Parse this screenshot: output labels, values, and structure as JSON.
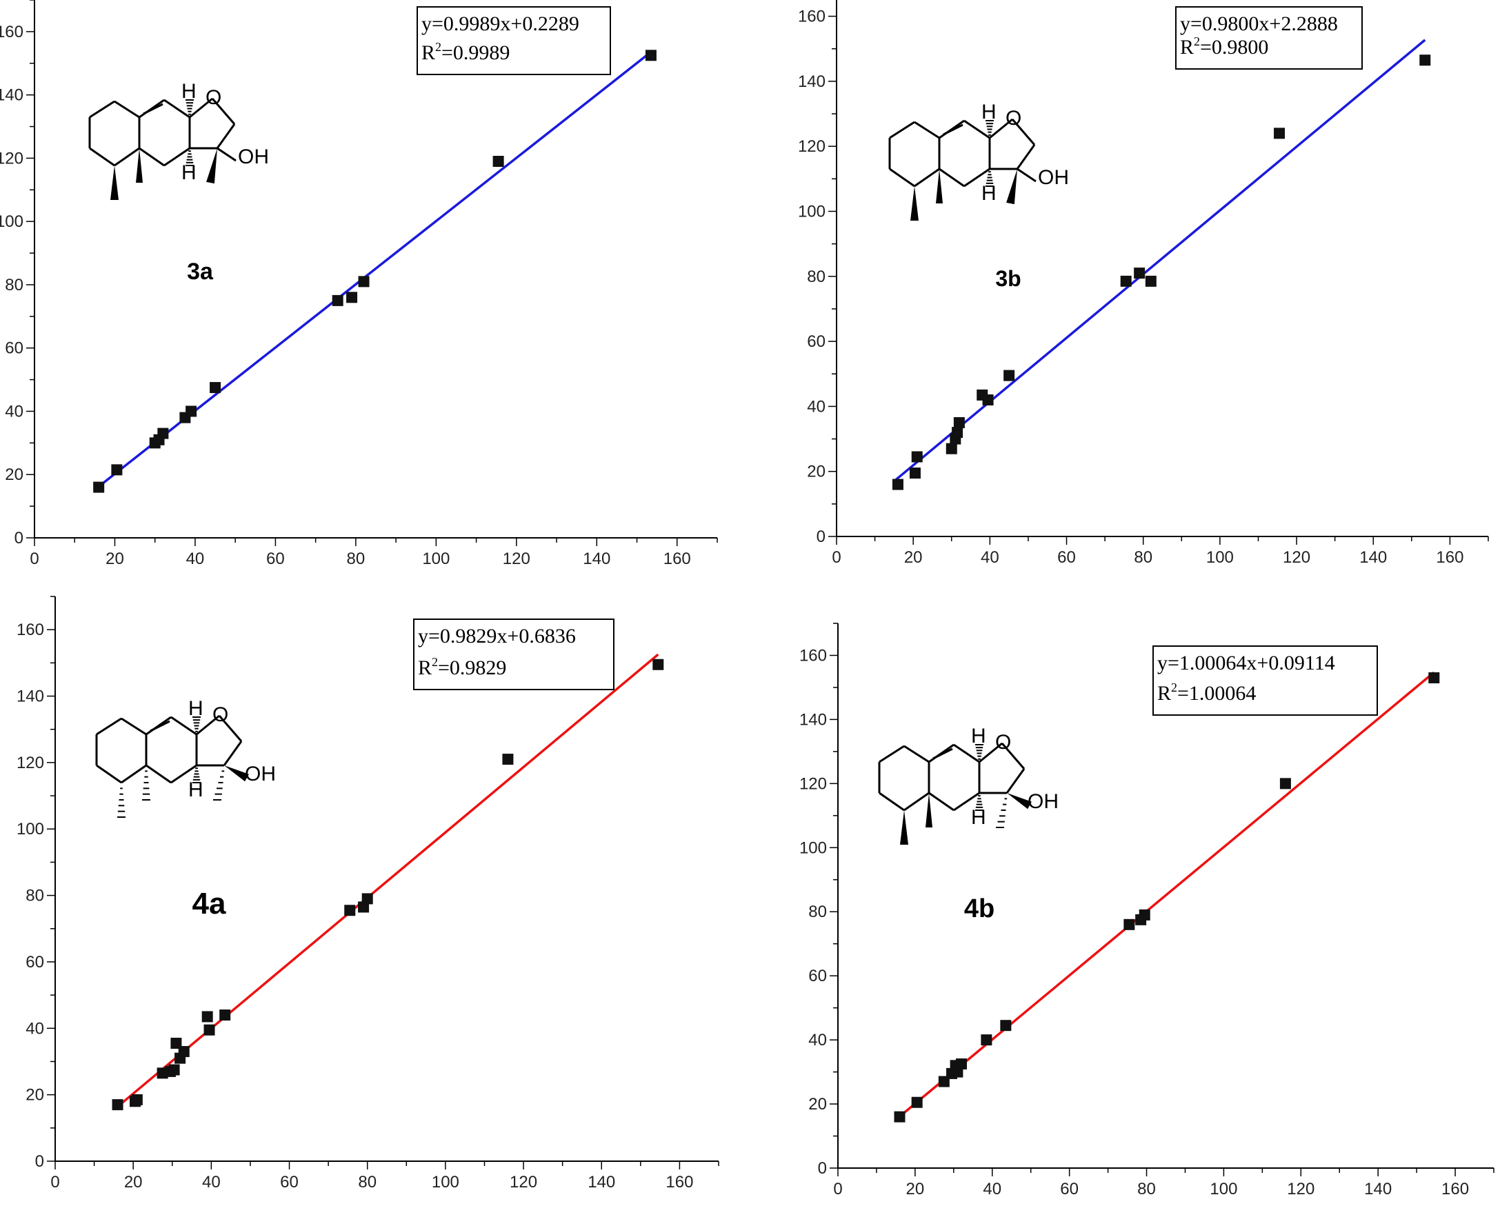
{
  "chart_data": [
    {
      "type": "scatter",
      "label": "3a",
      "equation": "y=0.9989x+0.2289",
      "r2_value": "=0.9989",
      "line_color": "#1a1adc",
      "xlim": [
        0,
        170
      ],
      "ylim": [
        0,
        170
      ],
      "xticks": [
        0,
        20,
        40,
        60,
        80,
        100,
        120,
        140,
        160
      ],
      "yticks": [
        0,
        20,
        40,
        60,
        80,
        100,
        120,
        140,
        160
      ],
      "fit": {
        "slope": 0.9989,
        "intercept": 0.2289,
        "x_range": [
          15.5,
          153.5
        ]
      },
      "points": [
        [
          16,
          16
        ],
        [
          20.5,
          21.5
        ],
        [
          30,
          30
        ],
        [
          31,
          31
        ],
        [
          32,
          33
        ],
        [
          37.5,
          38
        ],
        [
          39,
          40
        ],
        [
          45,
          47.5
        ],
        [
          75.5,
          75
        ],
        [
          79,
          76
        ],
        [
          82,
          81
        ],
        [
          115.5,
          119
        ],
        [
          153.5,
          152.5
        ]
      ]
    },
    {
      "type": "scatter",
      "label": "3b",
      "equation": "y=0.9800x+2.2888",
      "r2_value": "=0.9800",
      "line_color": "#1a1adc",
      "xlim": [
        0,
        170
      ],
      "ylim": [
        0,
        165
      ],
      "xticks": [
        0,
        20,
        40,
        60,
        80,
        100,
        120,
        140,
        160
      ],
      "yticks": [
        0,
        20,
        40,
        60,
        80,
        100,
        120,
        140,
        160
      ],
      "fit": {
        "slope": 0.98,
        "intercept": 2.2888,
        "x_range": [
          15.5,
          153.5
        ]
      },
      "points": [
        [
          16,
          16
        ],
        [
          20.5,
          19.5
        ],
        [
          21,
          24.5
        ],
        [
          30,
          27
        ],
        [
          31,
          30
        ],
        [
          31.5,
          32
        ],
        [
          32,
          35
        ],
        [
          38,
          43.5
        ],
        [
          39.5,
          42
        ],
        [
          45,
          49.5
        ],
        [
          75.5,
          78.5
        ],
        [
          79,
          81
        ],
        [
          82,
          78.5
        ],
        [
          115.5,
          124
        ],
        [
          153.5,
          146.5
        ]
      ]
    },
    {
      "type": "scatter",
      "label": "4a",
      "equation": "y=0.9829x+0.6836",
      "r2_value": "=0.9829",
      "line_color": "#ee1111",
      "xlim": [
        0,
        170
      ],
      "ylim": [
        0,
        170
      ],
      "xticks": [
        0,
        20,
        40,
        60,
        80,
        100,
        120,
        140,
        160
      ],
      "yticks": [
        0,
        20,
        40,
        60,
        80,
        100,
        120,
        140,
        160
      ],
      "fit": {
        "slope": 0.9829,
        "intercept": 0.6836,
        "x_range": [
          15.5,
          154.5
        ]
      },
      "points": [
        [
          16,
          17
        ],
        [
          20.5,
          18
        ],
        [
          21,
          18.5
        ],
        [
          27.5,
          26.5
        ],
        [
          29.5,
          27
        ],
        [
          30.5,
          27.5
        ],
        [
          31,
          35.5
        ],
        [
          32,
          31
        ],
        [
          33,
          33
        ],
        [
          39,
          43.5
        ],
        [
          39.5,
          39.5
        ],
        [
          43.5,
          44
        ],
        [
          75.5,
          75.5
        ],
        [
          79,
          76.5
        ],
        [
          80,
          79
        ],
        [
          116,
          121
        ],
        [
          154.5,
          149.5
        ]
      ]
    },
    {
      "type": "scatter",
      "label": "4b",
      "equation": "y=1.00064x+0.09114",
      "r2_value": "=1.00064",
      "line_color": "#ee1111",
      "xlim": [
        0,
        170
      ],
      "ylim": [
        0,
        170
      ],
      "xticks": [
        0,
        20,
        40,
        60,
        80,
        100,
        120,
        140,
        160
      ],
      "yticks": [
        0,
        20,
        40,
        60,
        80,
        100,
        120,
        140,
        160
      ],
      "fit": {
        "slope": 1.00064,
        "intercept": 0.09114,
        "x_range": [
          15.5,
          154.5
        ]
      },
      "points": [
        [
          16,
          16
        ],
        [
          20.5,
          20.5
        ],
        [
          27.5,
          27
        ],
        [
          29.5,
          29.5
        ],
        [
          30.5,
          32
        ],
        [
          31,
          30
        ],
        [
          32,
          32.5
        ],
        [
          38.5,
          40
        ],
        [
          43.5,
          44.5
        ],
        [
          75.5,
          76
        ],
        [
          78.5,
          77.5
        ],
        [
          79.5,
          79
        ],
        [
          116,
          120
        ],
        [
          154.5,
          153
        ]
      ]
    }
  ]
}
